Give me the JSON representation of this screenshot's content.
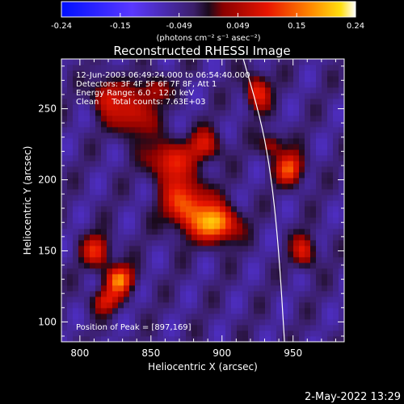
{
  "chart_data": {
    "type": "heatmap",
    "title": "Reconstructed RHESSI Image",
    "xlabel": "Heliocentric X (arcsec)",
    "ylabel": "Heliocentric Y (arcsec)",
    "xlim": [
      787,
      986
    ],
    "ylim": [
      86,
      285
    ],
    "xticks": [
      800,
      850,
      900,
      950
    ],
    "yticks": [
      100,
      150,
      200,
      250
    ],
    "colorbar": {
      "range": [
        -0.24,
        0.24
      ],
      "ticks": [
        "-0.24",
        "-0.15",
        "-0.049",
        "0.049",
        "0.15",
        "0.24"
      ],
      "units": "(photons cm⁻² s⁻¹ asec⁻²)"
    },
    "annotations": [
      "12-Jun-2003 06:49:24.000 to 06:54:40.000",
      "Detectors: 3F 4F 5F 6F 7F 8F, Att 1",
      "Energy Range: 6.0 - 12.0 keV",
      "Clean     Total counts: 7.63E+03"
    ],
    "peak_label": "Position of Peak = [897,169]",
    "peak": [
      897,
      169
    ],
    "limb_curve": [
      [
        915,
        285
      ],
      [
        928,
        240
      ],
      [
        935,
        200
      ],
      [
        940,
        150
      ],
      [
        944,
        86
      ]
    ],
    "sources": [
      {
        "x": 897,
        "y": 169,
        "amp": 0.24,
        "sx": 10,
        "sy": 9
      },
      {
        "x": 875,
        "y": 183,
        "amp": 0.2,
        "sx": 11,
        "sy": 13
      },
      {
        "x": 862,
        "y": 214,
        "amp": 0.16,
        "sx": 10,
        "sy": 10
      },
      {
        "x": 888,
        "y": 224,
        "amp": 0.13,
        "sx": 8,
        "sy": 8
      },
      {
        "x": 837,
        "y": 246,
        "amp": 0.15,
        "sx": 10,
        "sy": 11
      },
      {
        "x": 818,
        "y": 260,
        "amp": 0.13,
        "sx": 7,
        "sy": 9
      },
      {
        "x": 852,
        "y": 264,
        "amp": 0.11,
        "sx": 7,
        "sy": 7
      },
      {
        "x": 828,
        "y": 130,
        "amp": 0.2,
        "sx": 7,
        "sy": 7
      },
      {
        "x": 812,
        "y": 150,
        "amp": 0.15,
        "sx": 7,
        "sy": 8
      },
      {
        "x": 818,
        "y": 115,
        "amp": 0.13,
        "sx": 7,
        "sy": 6
      },
      {
        "x": 925,
        "y": 262,
        "amp": 0.16,
        "sx": 6,
        "sy": 9
      },
      {
        "x": 948,
        "y": 208,
        "amp": 0.18,
        "sx": 7,
        "sy": 8
      },
      {
        "x": 958,
        "y": 150,
        "amp": 0.14,
        "sx": 6,
        "sy": 8
      },
      {
        "x": 935,
        "y": 225,
        "amp": 0.11,
        "sx": 6,
        "sy": 6
      }
    ]
  },
  "footer": {
    "timestamp": "2-May-2022 13:29"
  }
}
